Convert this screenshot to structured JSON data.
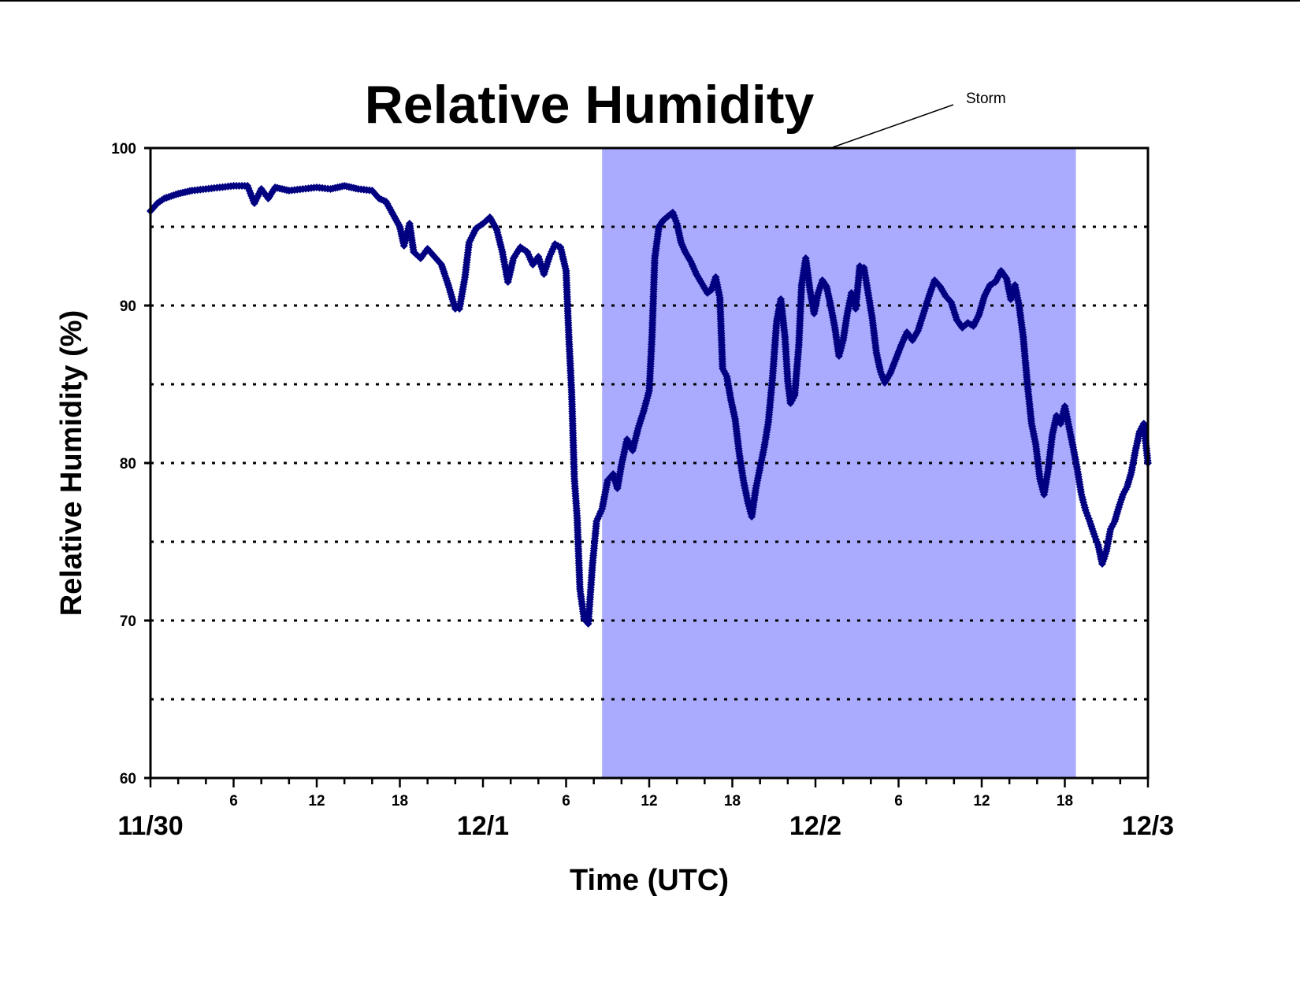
{
  "chart_data": {
    "type": "scatter",
    "title": "Relative Humidity",
    "xlabel": "Time (UTC)",
    "ylabel": "Relative Humidity (%)",
    "x_unit": "hours since 11/30 00 UTC",
    "xlim": [
      0,
      72
    ],
    "ylim": [
      60,
      100
    ],
    "y_ticks": [
      60,
      70,
      80,
      90,
      100
    ],
    "y_gridlines": [
      65,
      70,
      75,
      80,
      85,
      90,
      95
    ],
    "grid": "horizontal dotted",
    "hour_tick_labels": [
      {
        "x": 6,
        "label": "6"
      },
      {
        "x": 12,
        "label": "12"
      },
      {
        "x": 18,
        "label": "18"
      },
      {
        "x": 30,
        "label": "6"
      },
      {
        "x": 36,
        "label": "12"
      },
      {
        "x": 42,
        "label": "18"
      },
      {
        "x": 54,
        "label": "6"
      },
      {
        "x": 60,
        "label": "12"
      },
      {
        "x": 66,
        "label": "18"
      }
    ],
    "date_tick_labels": [
      {
        "x": 0,
        "label": "11/30"
      },
      {
        "x": 24,
        "label": "12/1"
      },
      {
        "x": 48,
        "label": "12/2"
      },
      {
        "x": 72,
        "label": "12/3"
      }
    ],
    "shaded_region": {
      "label": "Storm",
      "x_start": 32.6,
      "x_end": 66.8,
      "color": "#aaaaff"
    },
    "series": [
      {
        "color": "#000080",
        "points": [
          [
            0,
            96.0
          ],
          [
            0.5,
            96.5
          ],
          [
            1,
            96.8
          ],
          [
            2,
            97.1
          ],
          [
            3,
            97.3
          ],
          [
            4,
            97.4
          ],
          [
            5,
            97.5
          ],
          [
            6,
            97.6
          ],
          [
            7,
            97.6
          ],
          [
            7.5,
            96.5
          ],
          [
            8,
            97.4
          ],
          [
            8.5,
            96.8
          ],
          [
            9,
            97.5
          ],
          [
            10,
            97.3
          ],
          [
            11,
            97.4
          ],
          [
            12,
            97.5
          ],
          [
            13,
            97.4
          ],
          [
            14,
            97.6
          ],
          [
            15,
            97.4
          ],
          [
            16,
            97.3
          ],
          [
            16.5,
            96.8
          ],
          [
            17,
            96.6
          ],
          [
            17.5,
            95.8
          ],
          [
            18,
            95.0
          ],
          [
            18.3,
            93.8
          ],
          [
            18.7,
            95.2
          ],
          [
            19,
            93.4
          ],
          [
            19.5,
            93.0
          ],
          [
            20,
            93.6
          ],
          [
            20.5,
            93.1
          ],
          [
            21,
            92.6
          ],
          [
            21.5,
            91.3
          ],
          [
            22,
            89.8
          ],
          [
            22.3,
            89.8
          ],
          [
            22.7,
            91.8
          ],
          [
            23,
            94.0
          ],
          [
            23.5,
            94.9
          ],
          [
            24,
            95.2
          ],
          [
            24.5,
            95.6
          ],
          [
            25,
            94.8
          ],
          [
            25.4,
            93.4
          ],
          [
            25.8,
            91.5
          ],
          [
            26.2,
            93.0
          ],
          [
            26.7,
            93.7
          ],
          [
            27.2,
            93.4
          ],
          [
            27.6,
            92.6
          ],
          [
            28,
            93.1
          ],
          [
            28.4,
            92.0
          ],
          [
            28.8,
            93.1
          ],
          [
            29.2,
            93.9
          ],
          [
            29.6,
            93.7
          ],
          [
            30,
            92.2
          ],
          [
            30.2,
            88.0
          ],
          [
            30.4,
            84.5
          ],
          [
            30.6,
            79.0
          ],
          [
            30.8,
            76.5
          ],
          [
            31,
            72.0
          ],
          [
            31.3,
            70.1
          ],
          [
            31.6,
            69.8
          ],
          [
            31.9,
            73.5
          ],
          [
            32.2,
            76.3
          ],
          [
            32.6,
            77.1
          ],
          [
            33,
            78.9
          ],
          [
            33.4,
            79.3
          ],
          [
            33.7,
            78.4
          ],
          [
            34,
            79.9
          ],
          [
            34.4,
            81.5
          ],
          [
            34.8,
            80.8
          ],
          [
            35.2,
            82.2
          ],
          [
            35.6,
            83.3
          ],
          [
            36,
            84.6
          ],
          [
            36.2,
            88.0
          ],
          [
            36.4,
            93.0
          ],
          [
            36.7,
            95.0
          ],
          [
            37,
            95.4
          ],
          [
            37.4,
            95.7
          ],
          [
            37.7,
            95.9
          ],
          [
            38,
            95.2
          ],
          [
            38.3,
            94.0
          ],
          [
            38.6,
            93.4
          ],
          [
            39,
            92.8
          ],
          [
            39.4,
            92.0
          ],
          [
            39.8,
            91.4
          ],
          [
            40.2,
            90.8
          ],
          [
            40.5,
            91.0
          ],
          [
            40.8,
            91.8
          ],
          [
            41.1,
            90.5
          ],
          [
            41.3,
            86.0
          ],
          [
            41.6,
            85.5
          ],
          [
            41.9,
            84.0
          ],
          [
            42.2,
            82.8
          ],
          [
            42.5,
            80.6
          ],
          [
            42.8,
            78.9
          ],
          [
            43.1,
            77.6
          ],
          [
            43.4,
            76.6
          ],
          [
            43.7,
            78.4
          ],
          [
            44,
            79.7
          ],
          [
            44.3,
            81.0
          ],
          [
            44.6,
            82.6
          ],
          [
            44.9,
            85.4
          ],
          [
            45.2,
            89.0
          ],
          [
            45.5,
            90.4
          ],
          [
            45.8,
            88.0
          ],
          [
            46,
            85.2
          ],
          [
            46.2,
            83.8
          ],
          [
            46.5,
            84.3
          ],
          [
            46.8,
            87.5
          ],
          [
            47,
            91.3
          ],
          [
            47.3,
            93.0
          ],
          [
            47.6,
            91.0
          ],
          [
            47.9,
            89.5
          ],
          [
            48.2,
            90.8
          ],
          [
            48.5,
            91.6
          ],
          [
            48.8,
            91.2
          ],
          [
            49.1,
            90.0
          ],
          [
            49.4,
            88.6
          ],
          [
            49.7,
            86.8
          ],
          [
            50,
            87.8
          ],
          [
            50.3,
            89.5
          ],
          [
            50.6,
            90.8
          ],
          [
            50.9,
            89.8
          ],
          [
            51.2,
            92.5
          ],
          [
            51.5,
            92.4
          ],
          [
            51.8,
            90.8
          ],
          [
            52.1,
            89.2
          ],
          [
            52.4,
            87.0
          ],
          [
            52.7,
            85.8
          ],
          [
            53,
            85.1
          ],
          [
            53.4,
            85.7
          ],
          [
            53.8,
            86.6
          ],
          [
            54.2,
            87.5
          ],
          [
            54.6,
            88.3
          ],
          [
            55,
            87.8
          ],
          [
            55.4,
            88.4
          ],
          [
            55.8,
            89.5
          ],
          [
            56.2,
            90.6
          ],
          [
            56.6,
            91.6
          ],
          [
            57,
            91.2
          ],
          [
            57.4,
            90.6
          ],
          [
            57.8,
            90.2
          ],
          [
            58.2,
            89.1
          ],
          [
            58.6,
            88.6
          ],
          [
            59,
            88.9
          ],
          [
            59.4,
            88.7
          ],
          [
            59.8,
            89.4
          ],
          [
            60.2,
            90.6
          ],
          [
            60.6,
            91.3
          ],
          [
            61,
            91.5
          ],
          [
            61.4,
            92.2
          ],
          [
            61.8,
            91.7
          ],
          [
            62.1,
            90.4
          ],
          [
            62.4,
            91.3
          ],
          [
            62.7,
            90.0
          ],
          [
            63,
            88.0
          ],
          [
            63.3,
            85.0
          ],
          [
            63.6,
            82.5
          ],
          [
            63.9,
            81.2
          ],
          [
            64.2,
            79.0
          ],
          [
            64.5,
            78.0
          ],
          [
            64.8,
            79.6
          ],
          [
            65.1,
            81.8
          ],
          [
            65.4,
            83.0
          ],
          [
            65.7,
            82.5
          ],
          [
            66,
            83.6
          ],
          [
            66.3,
            82.3
          ],
          [
            66.6,
            81.0
          ],
          [
            66.9,
            79.6
          ],
          [
            67.2,
            78.0
          ],
          [
            67.5,
            77.0
          ],
          [
            67.8,
            76.3
          ],
          [
            68.1,
            75.5
          ],
          [
            68.4,
            74.8
          ],
          [
            68.7,
            73.6
          ],
          [
            69,
            74.4
          ],
          [
            69.3,
            75.8
          ],
          [
            69.6,
            76.3
          ],
          [
            69.9,
            77.2
          ],
          [
            70.2,
            78.0
          ],
          [
            70.5,
            78.5
          ],
          [
            70.8,
            79.4
          ],
          [
            71.1,
            80.8
          ],
          [
            71.4,
            82.0
          ],
          [
            71.7,
            82.5
          ],
          [
            72,
            80.0
          ]
        ]
      }
    ]
  }
}
